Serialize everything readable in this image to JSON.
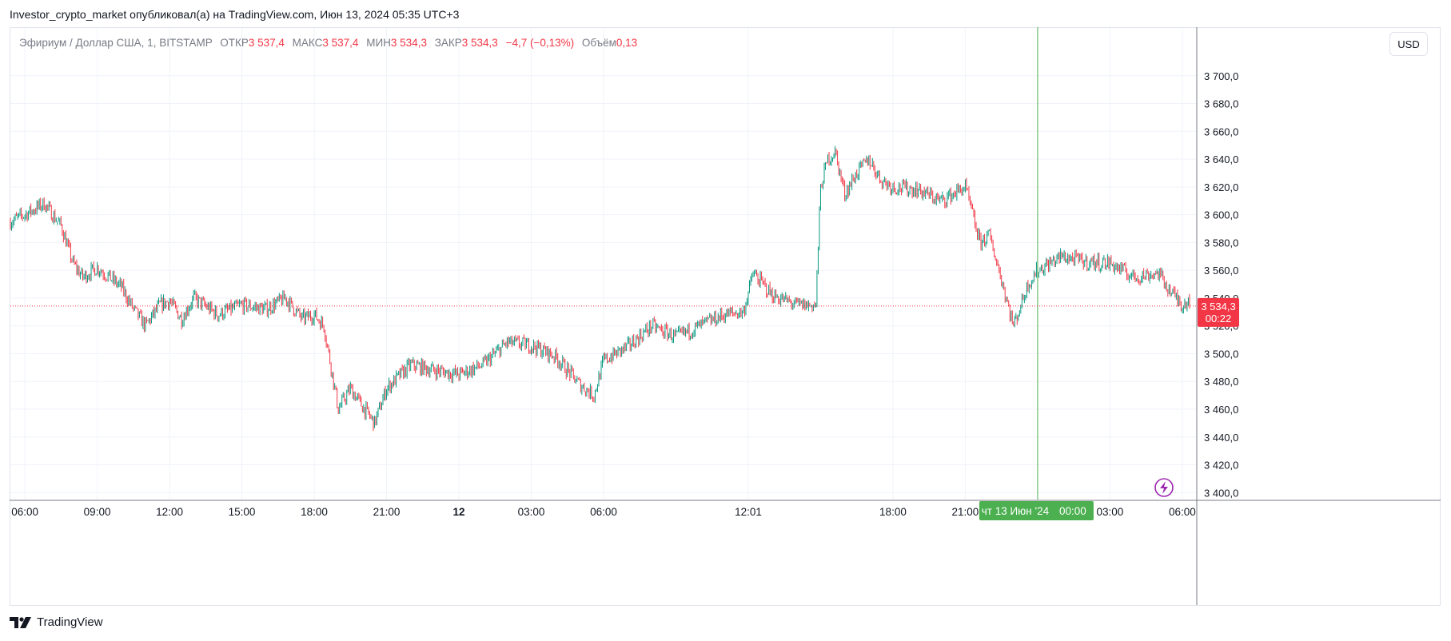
{
  "header": {
    "publish_line": "Investor_crypto_market опубликовал(а) на TradingView.com, Июн 13, 2024 05:35 UTC+3"
  },
  "legend": {
    "symbol": "Эфириум / Доллар США, 1, BITSTAMP",
    "open_label": "ОТКР",
    "open_value": "3 537,4",
    "high_label": "МАКС",
    "high_value": "3 537,4",
    "low_label": "МИН",
    "low_value": "3 534,3",
    "close_label": "ЗАКР",
    "close_value": "3 534,3",
    "change": "−4,7 (−0,13%)",
    "volume_label": "Объём",
    "volume_value": "0,13"
  },
  "currency_button": "USD",
  "price_label": {
    "price": "3 534,3",
    "countdown": "00:22"
  },
  "crosshair_label": {
    "date": "чт 13 Июн '24",
    "time": "00:00"
  },
  "footer": {
    "brand": "TradingView"
  },
  "colors": {
    "up": "#089981",
    "down": "#f23645",
    "grid": "#f0f3fa",
    "crosshair": "#4caf50",
    "crosshair_label_bg": "#4caf50"
  },
  "chart_data": {
    "type": "candlestick",
    "symbol": "ETH/USD",
    "interval": "1",
    "exchange": "BITSTAMP",
    "ylim": [
      3395,
      3720
    ],
    "y_ticks": [
      3400,
      3420,
      3440,
      3460,
      3480,
      3500,
      3520,
      3540,
      3560,
      3580,
      3600,
      3620,
      3640,
      3660,
      3680,
      3700
    ],
    "y_tick_labels": [
      "3 400,0",
      "3 420,0",
      "3 440,0",
      "3 460,0",
      "3 480,0",
      "3 500,0",
      "3 520,0",
      "3 540,0",
      "3 560,0",
      "3 580,0",
      "3 600,0",
      "3 620,0",
      "3 640,0",
      "3 660,0",
      "3 680,0",
      "3 700,0"
    ],
    "x_tick_labels": [
      "06:00",
      "09:00",
      "12:00",
      "15:00",
      "18:00",
      "21:00",
      "12",
      "03:00",
      "06:00",
      "12:01",
      "18:00",
      "21:00",
      "03:00",
      "06:00"
    ],
    "x_tick_hours": [
      6,
      9,
      12,
      15,
      18,
      21,
      24,
      27,
      30,
      36,
      42,
      45,
      51,
      54
    ],
    "x_range_hours": [
      5.4,
      54.6
    ],
    "crosshair_hours": 48,
    "last_price": 3534.3,
    "price_path_hours": [
      5.4,
      6.0,
      6.8,
      7.5,
      8.0,
      8.4,
      9.0,
      10.0,
      10.5,
      11.0,
      11.6,
      12.0,
      12.5,
      13.0,
      14.0,
      15.0,
      16.0,
      16.8,
      17.5,
      18.0,
      18.4,
      18.7,
      19.0,
      19.5,
      20.0,
      20.5,
      21.0,
      22.0,
      23.0,
      24.0,
      25.0,
      26.0,
      27.0,
      28.0,
      29.0,
      29.6,
      30.0,
      31.0,
      32.0,
      33.0,
      34.0,
      35.0,
      35.8,
      36.2,
      37.0,
      38.0,
      38.8,
      39.0,
      39.3,
      39.6,
      40.0,
      40.5,
      41.0,
      41.5,
      42.0,
      43.0,
      44.0,
      45.0,
      45.3,
      45.6,
      46.0,
      46.4,
      47.0,
      47.6,
      48.0,
      49.0,
      50.0,
      51.0,
      52.0,
      53.0,
      53.5,
      54.0,
      54.3
    ],
    "price_path_values": [
      3595,
      3600,
      3608,
      3592,
      3565,
      3555,
      3562,
      3548,
      3532,
      3520,
      3535,
      3538,
      3525,
      3540,
      3528,
      3535,
      3532,
      3540,
      3525,
      3528,
      3520,
      3490,
      3460,
      3475,
      3462,
      3450,
      3475,
      3492,
      3488,
      3485,
      3492,
      3508,
      3506,
      3498,
      3478,
      3470,
      3495,
      3505,
      3520,
      3512,
      3520,
      3528,
      3530,
      3558,
      3542,
      3535,
      3535,
      3620,
      3640,
      3645,
      3615,
      3630,
      3640,
      3625,
      3620,
      3618,
      3610,
      3620,
      3600,
      3580,
      3585,
      3560,
      3520,
      3550,
      3560,
      3570,
      3566,
      3565,
      3555,
      3558,
      3545,
      3535,
      3540
    ],
    "price_path_noise": 5
  }
}
